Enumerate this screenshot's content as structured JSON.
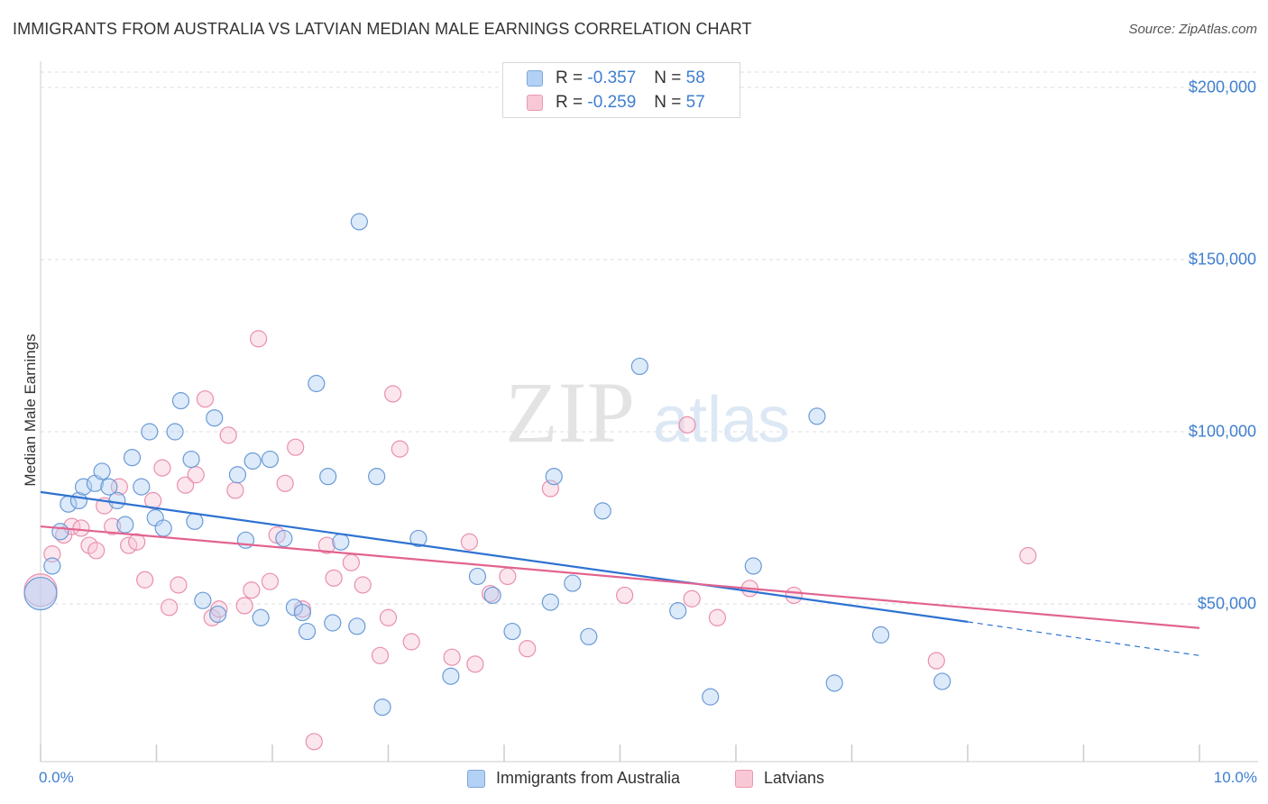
{
  "title": "IMMIGRANTS FROM AUSTRALIA VS LATVIAN MEDIAN MALE EARNINGS CORRELATION CHART",
  "source": "Source: ZipAtlas.com",
  "watermark": {
    "zip": "ZIP",
    "atlas": "atlas"
  },
  "colors": {
    "blue": "#6fa3e0",
    "blue_line": "#2e72d2",
    "pink": "#ef9ab5",
    "pink_line": "#e2638f",
    "tick_text": "#3f7fd0"
  },
  "legend_top": [
    {
      "r_label": "R =",
      "r_value": "-0.357",
      "n_label": "N =",
      "n_value": "58"
    },
    {
      "r_label": "R =",
      "r_value": "-0.259",
      "n_label": "N =",
      "n_value": "57"
    }
  ],
  "chart_data": {
    "type": "scatter",
    "title": "IMMIGRANTS FROM AUSTRALIA VS LATVIAN MEDIAN MALE EARNINGS CORRELATION CHART",
    "xlabel": "",
    "ylabel": "Median Male Earnings",
    "xlim": [
      0,
      10
    ],
    "ylim": [
      0,
      205000
    ],
    "x_tick_labels": [
      "0.0%",
      "10.0%"
    ],
    "y_ticks": [
      50000,
      100000,
      150000,
      200000
    ],
    "y_tick_labels": [
      "$50,000",
      "$100,000",
      "$150,000",
      "$200,000"
    ],
    "grid": "horizontal dashed",
    "legend_position": "top-center and bottom",
    "series": [
      {
        "name": "Immigrants from Australia",
        "color": "#6fa3e0",
        "trend": {
          "x": [
            0,
            8.0
          ],
          "y": [
            82500,
            44800
          ],
          "dashed_to": [
            10.0,
            35000
          ]
        },
        "points": [
          {
            "x": 0.0,
            "y": 53000,
            "big": true
          },
          {
            "x": 0.1,
            "y": 61000
          },
          {
            "x": 0.17,
            "y": 71000
          },
          {
            "x": 0.24,
            "y": 79000
          },
          {
            "x": 0.33,
            "y": 80000
          },
          {
            "x": 0.37,
            "y": 84000
          },
          {
            "x": 0.47,
            "y": 85000
          },
          {
            "x": 0.53,
            "y": 88500
          },
          {
            "x": 0.59,
            "y": 84000
          },
          {
            "x": 0.66,
            "y": 80000
          },
          {
            "x": 0.73,
            "y": 73000
          },
          {
            "x": 0.79,
            "y": 92500
          },
          {
            "x": 0.87,
            "y": 84000
          },
          {
            "x": 0.94,
            "y": 100000
          },
          {
            "x": 0.99,
            "y": 75000
          },
          {
            "x": 1.06,
            "y": 72000
          },
          {
            "x": 1.16,
            "y": 100000
          },
          {
            "x": 1.21,
            "y": 109000
          },
          {
            "x": 1.3,
            "y": 92000
          },
          {
            "x": 1.33,
            "y": 74000
          },
          {
            "x": 1.4,
            "y": 51000
          },
          {
            "x": 1.5,
            "y": 104000
          },
          {
            "x": 1.53,
            "y": 47000
          },
          {
            "x": 1.7,
            "y": 87500
          },
          {
            "x": 1.77,
            "y": 68500
          },
          {
            "x": 1.83,
            "y": 91500
          },
          {
            "x": 1.9,
            "y": 46000
          },
          {
            "x": 1.98,
            "y": 92000
          },
          {
            "x": 2.1,
            "y": 69000
          },
          {
            "x": 2.19,
            "y": 49000
          },
          {
            "x": 2.26,
            "y": 47500
          },
          {
            "x": 2.3,
            "y": 42000
          },
          {
            "x": 2.38,
            "y": 114000
          },
          {
            "x": 2.48,
            "y": 87000
          },
          {
            "x": 2.52,
            "y": 44500
          },
          {
            "x": 2.59,
            "y": 68000
          },
          {
            "x": 2.75,
            "y": 161000
          },
          {
            "x": 2.73,
            "y": 43500
          },
          {
            "x": 2.9,
            "y": 87000
          },
          {
            "x": 2.95,
            "y": 20000
          },
          {
            "x": 3.26,
            "y": 69000
          },
          {
            "x": 3.54,
            "y": 29000
          },
          {
            "x": 3.77,
            "y": 58000
          },
          {
            "x": 3.9,
            "y": 52500
          },
          {
            "x": 4.07,
            "y": 42000
          },
          {
            "x": 4.4,
            "y": 50500
          },
          {
            "x": 4.43,
            "y": 87000
          },
          {
            "x": 4.59,
            "y": 56000
          },
          {
            "x": 4.73,
            "y": 40500
          },
          {
            "x": 4.85,
            "y": 77000
          },
          {
            "x": 5.17,
            "y": 119000
          },
          {
            "x": 5.5,
            "y": 48000
          },
          {
            "x": 5.78,
            "y": 23000
          },
          {
            "x": 6.15,
            "y": 61000
          },
          {
            "x": 6.7,
            "y": 104500
          },
          {
            "x": 6.85,
            "y": 27000
          },
          {
            "x": 7.25,
            "y": 41000
          },
          {
            "x": 7.78,
            "y": 27500
          }
        ]
      },
      {
        "name": "Latvians",
        "color": "#ef9ab5",
        "trend": {
          "x": [
            0,
            10.0
          ],
          "y": [
            72500,
            43000
          ]
        },
        "points": [
          {
            "x": 0.0,
            "y": 54000,
            "big": true
          },
          {
            "x": 0.1,
            "y": 64500
          },
          {
            "x": 0.2,
            "y": 70000
          },
          {
            "x": 0.27,
            "y": 72500
          },
          {
            "x": 0.35,
            "y": 72000
          },
          {
            "x": 0.42,
            "y": 67000
          },
          {
            "x": 0.48,
            "y": 65500
          },
          {
            "x": 0.55,
            "y": 78500
          },
          {
            "x": 0.62,
            "y": 72500
          },
          {
            "x": 0.68,
            "y": 84000
          },
          {
            "x": 0.76,
            "y": 67000
          },
          {
            "x": 0.83,
            "y": 68000
          },
          {
            "x": 0.9,
            "y": 57000
          },
          {
            "x": 0.97,
            "y": 80000
          },
          {
            "x": 1.05,
            "y": 89500
          },
          {
            "x": 1.11,
            "y": 49000
          },
          {
            "x": 1.19,
            "y": 55500
          },
          {
            "x": 1.25,
            "y": 84500
          },
          {
            "x": 1.34,
            "y": 87500
          },
          {
            "x": 1.42,
            "y": 109500
          },
          {
            "x": 1.48,
            "y": 46000
          },
          {
            "x": 1.54,
            "y": 48500
          },
          {
            "x": 1.62,
            "y": 99000
          },
          {
            "x": 1.68,
            "y": 83000
          },
          {
            "x": 1.76,
            "y": 49500
          },
          {
            "x": 1.82,
            "y": 54000
          },
          {
            "x": 1.88,
            "y": 127000
          },
          {
            "x": 1.98,
            "y": 56500
          },
          {
            "x": 2.04,
            "y": 70000
          },
          {
            "x": 2.11,
            "y": 85000
          },
          {
            "x": 2.2,
            "y": 95500
          },
          {
            "x": 2.26,
            "y": 48500
          },
          {
            "x": 2.36,
            "y": 10000
          },
          {
            "x": 2.47,
            "y": 67000
          },
          {
            "x": 2.53,
            "y": 57500
          },
          {
            "x": 2.68,
            "y": 62000
          },
          {
            "x": 2.78,
            "y": 55500
          },
          {
            "x": 2.93,
            "y": 35000
          },
          {
            "x": 3.0,
            "y": 46000
          },
          {
            "x": 3.04,
            "y": 111000
          },
          {
            "x": 3.1,
            "y": 95000
          },
          {
            "x": 3.2,
            "y": 39000
          },
          {
            "x": 3.55,
            "y": 34500
          },
          {
            "x": 3.7,
            "y": 68000
          },
          {
            "x": 3.75,
            "y": 32500
          },
          {
            "x": 3.88,
            "y": 53000
          },
          {
            "x": 4.03,
            "y": 58000
          },
          {
            "x": 4.2,
            "y": 37000
          },
          {
            "x": 4.4,
            "y": 83500
          },
          {
            "x": 5.04,
            "y": 52500
          },
          {
            "x": 5.58,
            "y": 102000
          },
          {
            "x": 5.62,
            "y": 51500
          },
          {
            "x": 5.84,
            "y": 46000
          },
          {
            "x": 6.12,
            "y": 54500
          },
          {
            "x": 6.5,
            "y": 52500
          },
          {
            "x": 7.73,
            "y": 33500
          },
          {
            "x": 8.52,
            "y": 64000
          }
        ]
      }
    ]
  },
  "bottom_legend": {
    "series1": "Immigrants from Australia",
    "series2": "Latvians"
  }
}
